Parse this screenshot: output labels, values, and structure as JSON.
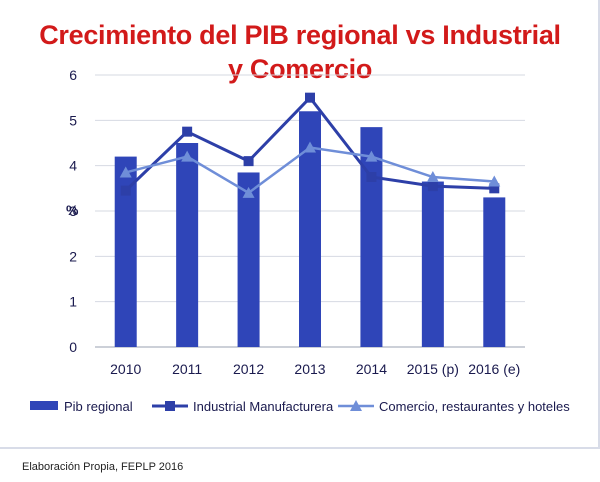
{
  "chart_data": {
    "type": "bar",
    "title_lines": [
      "Crecimiento del PIB regional vs Industrial",
      "y Comercio"
    ],
    "ylabel": "%",
    "ylim": [
      0,
      6
    ],
    "yticks": [
      0,
      1,
      2,
      3,
      4,
      5,
      6
    ],
    "grid": true,
    "legend": "bottom",
    "categories": [
      "2010",
      "2011",
      "2012",
      "2013",
      "2014",
      "2015 (p)",
      "2016 (e)"
    ],
    "series": [
      {
        "name": "Pib regional",
        "type": "bar",
        "values": [
          4.2,
          4.5,
          3.85,
          5.2,
          4.85,
          3.65,
          3.3
        ],
        "color": "#2f45b8"
      },
      {
        "name": "Industrial Manufacturera",
        "type": "line",
        "marker": "square",
        "values": [
          3.45,
          4.75,
          4.1,
          5.5,
          3.75,
          3.55,
          3.5
        ],
        "color": "#2d3fa8"
      },
      {
        "name": "Comercio, restaurantes y hoteles",
        "type": "line",
        "marker": "triangle",
        "values": [
          3.85,
          4.2,
          3.4,
          4.4,
          4.2,
          3.75,
          3.65
        ],
        "color": "#6f8ed8"
      }
    ]
  },
  "footer": "Elaboración Propia, FEPLP 2016"
}
